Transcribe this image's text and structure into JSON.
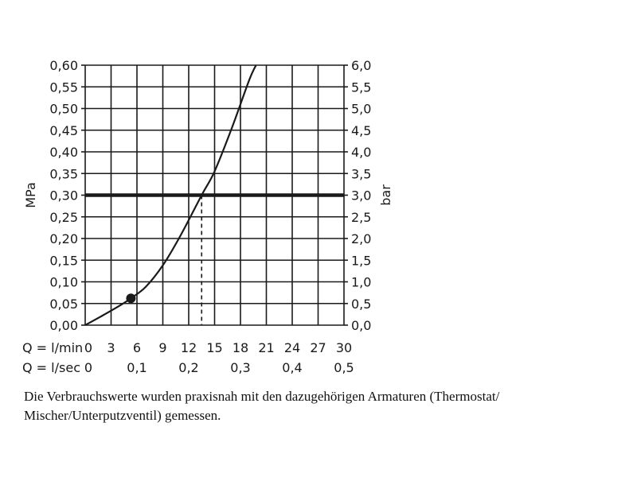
{
  "chart_data": {
    "type": "line",
    "x_min_ticks": [
      "0",
      "3",
      "6",
      "9",
      "12",
      "15",
      "18",
      "21",
      "24",
      "27",
      "30"
    ],
    "x_min_values": [
      0,
      3,
      6,
      9,
      12,
      15,
      18,
      21,
      24,
      27,
      30
    ],
    "x_sec_ticks": [
      "0",
      "0,1",
      "0,2",
      "0,3",
      "0,4",
      "0,5"
    ],
    "x_sec_values": [
      0,
      6,
      12,
      18,
      24,
      30
    ],
    "x_min_label": "Q = l/min",
    "x_sec_label": "Q = l/sec",
    "y_left_label": "MPa",
    "y_right_label": "bar",
    "y_left_ticks": [
      "0,00",
      "0,05",
      "0,10",
      "0,15",
      "0,20",
      "0,25",
      "0,30",
      "0,35",
      "0,40",
      "0,45",
      "0,50",
      "0,55",
      "0,60"
    ],
    "y_right_ticks": [
      "0,0",
      "0,5",
      "1,0",
      "1,5",
      "2,0",
      "2,5",
      "3,0",
      "3,5",
      "4,0",
      "4,5",
      "5,0",
      "5,5",
      "6,0"
    ],
    "y_values": [
      0,
      0.05,
      0.1,
      0.15,
      0.2,
      0.25,
      0.3,
      0.35,
      0.4,
      0.45,
      0.5,
      0.55,
      0.6
    ],
    "xlim": [
      0,
      30
    ],
    "ylim": [
      0,
      0.6
    ],
    "grid": true,
    "series": [
      {
        "x": [
          0,
          2,
          4,
          5.3,
          7,
          9,
          11,
          13.5,
          15,
          17,
          19,
          19.8
        ],
        "y": [
          0,
          0.022,
          0.045,
          0.062,
          0.088,
          0.138,
          0.205,
          0.3,
          0.355,
          0.455,
          0.565,
          0.6
        ],
        "color": "#1a1a1a"
      }
    ],
    "marker": {
      "x": 5.3,
      "y": 0.062
    },
    "reference_line": {
      "y": 0.3,
      "color": "#1a1a1a"
    },
    "reference_drop": {
      "x": 13.5,
      "y": 0.3,
      "style": "dashed"
    }
  },
  "caption": "Die Verbrauchswerte wurden praxisnah mit den dazugehörigen Armaturen (Thermostat/ Mischer/Unterputzventil) gemessen."
}
